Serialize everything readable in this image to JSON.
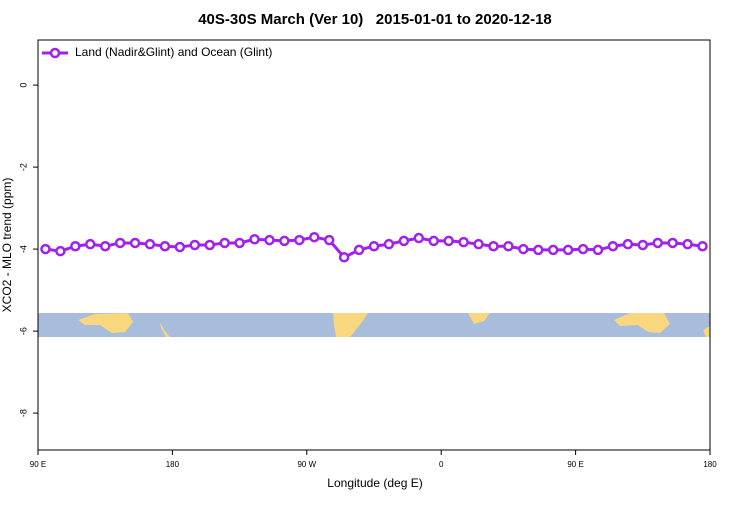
{
  "chart_data": {
    "type": "line",
    "title": "40S-30S March (Ver 10)   2015-01-01 to 2020-12-18",
    "x_label": "Longitude (deg E)",
    "y_label": "XCO2 - MLO trend (ppm)",
    "xlim": [
      90,
      540
    ],
    "xticks": [
      {
        "value": 90,
        "label": "90 E"
      },
      {
        "value": 180,
        "label": "180"
      },
      {
        "value": 270,
        "label": "90 W"
      },
      {
        "value": 360,
        "label": "0"
      },
      {
        "value": 450,
        "label": "90 E"
      },
      {
        "value": 540,
        "label": "180"
      }
    ],
    "ylim": [
      -8.9,
      1.1
    ],
    "yticks": [
      0,
      -2,
      -4,
      -6,
      -8
    ],
    "legend": "top-left",
    "x": [
      95,
      105,
      115,
      125,
      135,
      145,
      155,
      165,
      175,
      185,
      195,
      205,
      215,
      225,
      235,
      245,
      255,
      265,
      275,
      285,
      295,
      305,
      315,
      325,
      335,
      345,
      355,
      365,
      375,
      385,
      395,
      405,
      415,
      425,
      435,
      445,
      455,
      465,
      475,
      485,
      495,
      505,
      515,
      525,
      535
    ],
    "series": [
      {
        "name": "Land (Nadir&Glint) and Ocean (Glint)",
        "color": "#a020f0",
        "values": [
          -4.0,
          -4.05,
          -3.93,
          -3.88,
          -3.93,
          -3.85,
          -3.85,
          -3.88,
          -3.93,
          -3.95,
          -3.9,
          -3.9,
          -3.85,
          -3.85,
          -3.76,
          -3.78,
          -3.8,
          -3.78,
          -3.71,
          -3.78,
          -4.2,
          -4.02,
          -3.93,
          -3.88,
          -3.8,
          -3.73,
          -3.8,
          -3.8,
          -3.83,
          -3.88,
          -3.93,
          -3.93,
          -4.0,
          -4.02,
          -4.02,
          -4.02,
          -4.0,
          -4.02,
          -3.93,
          -3.88,
          -3.9,
          -3.85,
          -3.85,
          -3.88,
          -3.93
        ]
      }
    ]
  }
}
